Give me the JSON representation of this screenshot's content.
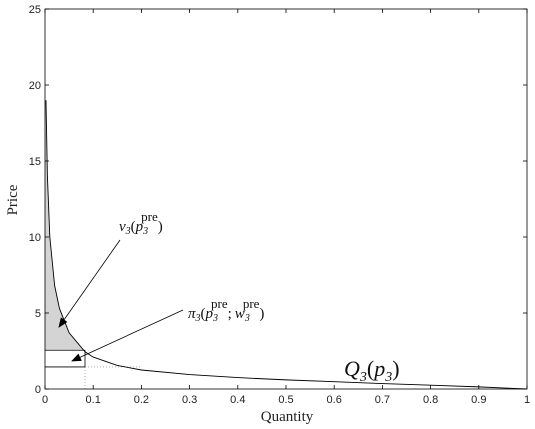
{
  "chart_data": {
    "type": "line",
    "xlabel": "Quantity",
    "ylabel": "Price",
    "xlim": [
      0,
      1
    ],
    "ylim": [
      0,
      25
    ],
    "x_ticks": [
      "0",
      "0.1",
      "0.2",
      "0.3",
      "0.4",
      "0.5",
      "0.6",
      "0.7",
      "0.8",
      "0.9",
      "1"
    ],
    "y_ticks": [
      "0",
      "5",
      "10",
      "15",
      "20",
      "25"
    ],
    "series": [
      {
        "name": "Q3(p3)",
        "x": [
          0.002,
          0.005,
          0.01,
          0.02,
          0.03,
          0.05,
          0.083,
          0.1,
          0.15,
          0.2,
          0.3,
          0.4,
          0.5,
          0.6,
          0.7,
          0.8,
          0.9,
          0.95,
          1.0
        ],
        "y": [
          19.0,
          14.0,
          10.0,
          6.8,
          5.3,
          3.7,
          2.45,
          2.1,
          1.55,
          1.25,
          0.95,
          0.75,
          0.6,
          0.48,
          0.36,
          0.25,
          0.14,
          0.07,
          0.0
        ]
      }
    ],
    "shaded_region": {
      "x_range": [
        0,
        0.083
      ],
      "y_range": [
        2.55,
        25
      ]
    },
    "reference_lines": {
      "p_pre": 2.55,
      "w_pre": 1.45,
      "q_pre": 0.083
    },
    "annotations": [
      {
        "text": "v3(p3pre)",
        "target": [
          0.025,
          4.0
        ]
      },
      {
        "text": "π3(p3pre; w3pre)",
        "target": [
          0.055,
          1.9
        ]
      }
    ],
    "curve_label": "Q3(p3)"
  },
  "annotation_text": {
    "v_main": "v",
    "v_sub": "3",
    "open_paren": "(",
    "p": "p",
    "p_sub": "3",
    "pre": "pre",
    "close_paren": ")",
    "pi_main": "π",
    "pi_sub": "3",
    "semi": ";",
    "w": "w",
    "w_sub": "3",
    "Q": "Q",
    "Q_sub": "3"
  }
}
